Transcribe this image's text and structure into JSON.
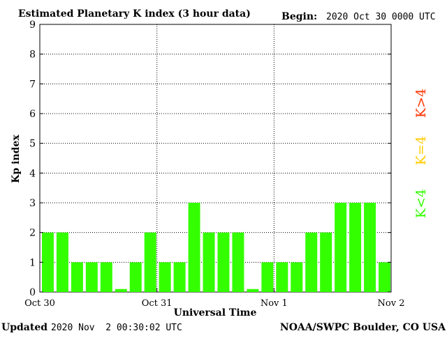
{
  "header": {
    "title": "Estimated Planetary K index (3 hour data)",
    "begin_label": "Begin:",
    "begin_value": "2020 Oct 30 0000 UTC"
  },
  "footer": {
    "updated_label": "Updated",
    "updated_value": "2020 Nov  2 00:30:02 UTC",
    "credit": "NOAA/SWPC Boulder, CO USA"
  },
  "legend": {
    "high": {
      "label": "K>4",
      "color": "#ff3300"
    },
    "mid": {
      "label": "K=4",
      "color": "#ffcc00"
    },
    "low": {
      "label": "K<4",
      "color": "#33ff00"
    }
  },
  "colors": {
    "bar": "#33ff00",
    "axis": "#000000",
    "grid": "#000000",
    "background": "#ffffff"
  },
  "chart_data": {
    "type": "bar",
    "title": "Estimated Planetary K index (3 hour data)",
    "xlabel": "Universal Time",
    "ylabel": "Kp index",
    "ylim": [
      0,
      9
    ],
    "y_ticks": [
      "0",
      "1",
      "2",
      "3",
      "4",
      "5",
      "6",
      "7",
      "8",
      "9"
    ],
    "x_ticks": [
      "Oct 30",
      "Oct 31",
      "Nov 1",
      "Nov 2"
    ],
    "grid": true,
    "legend_placement": "right",
    "interval_hours": 3,
    "values": [
      2,
      2,
      1,
      1,
      1,
      0.1,
      1,
      2,
      1,
      1,
      3,
      2,
      2,
      2,
      0.1,
      1,
      1,
      1,
      2,
      2,
      3,
      3,
      3,
      1
    ]
  }
}
